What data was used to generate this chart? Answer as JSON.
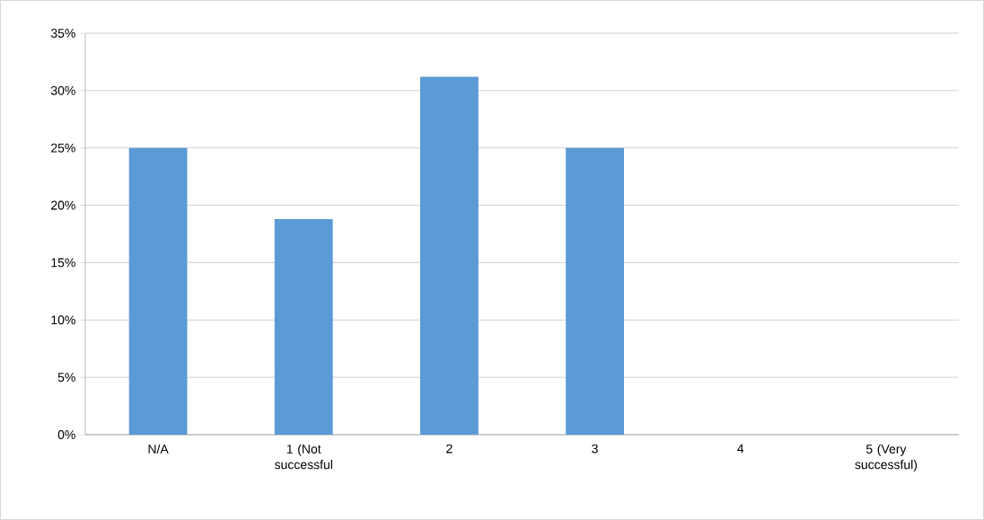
{
  "chart_data": {
    "type": "bar",
    "categories": [
      "N/A",
      "1 (Not successful",
      "2",
      "3",
      "4",
      "5 (Very successful)"
    ],
    "values": [
      25,
      18.8,
      31.2,
      25,
      0,
      0
    ],
    "color": "#5b9bd5",
    "ylim": [
      0,
      35
    ],
    "yticks": [
      {
        "value": 0,
        "label": "0%"
      },
      {
        "value": 5,
        "label": "5%"
      },
      {
        "value": 10,
        "label": "10%"
      },
      {
        "value": 15,
        "label": "15%"
      },
      {
        "value": 20,
        "label": "20%"
      },
      {
        "value": 25,
        "label": "25%"
      },
      {
        "value": 30,
        "label": "30%"
      },
      {
        "value": 35,
        "label": "35%"
      }
    ],
    "grid": "y"
  }
}
